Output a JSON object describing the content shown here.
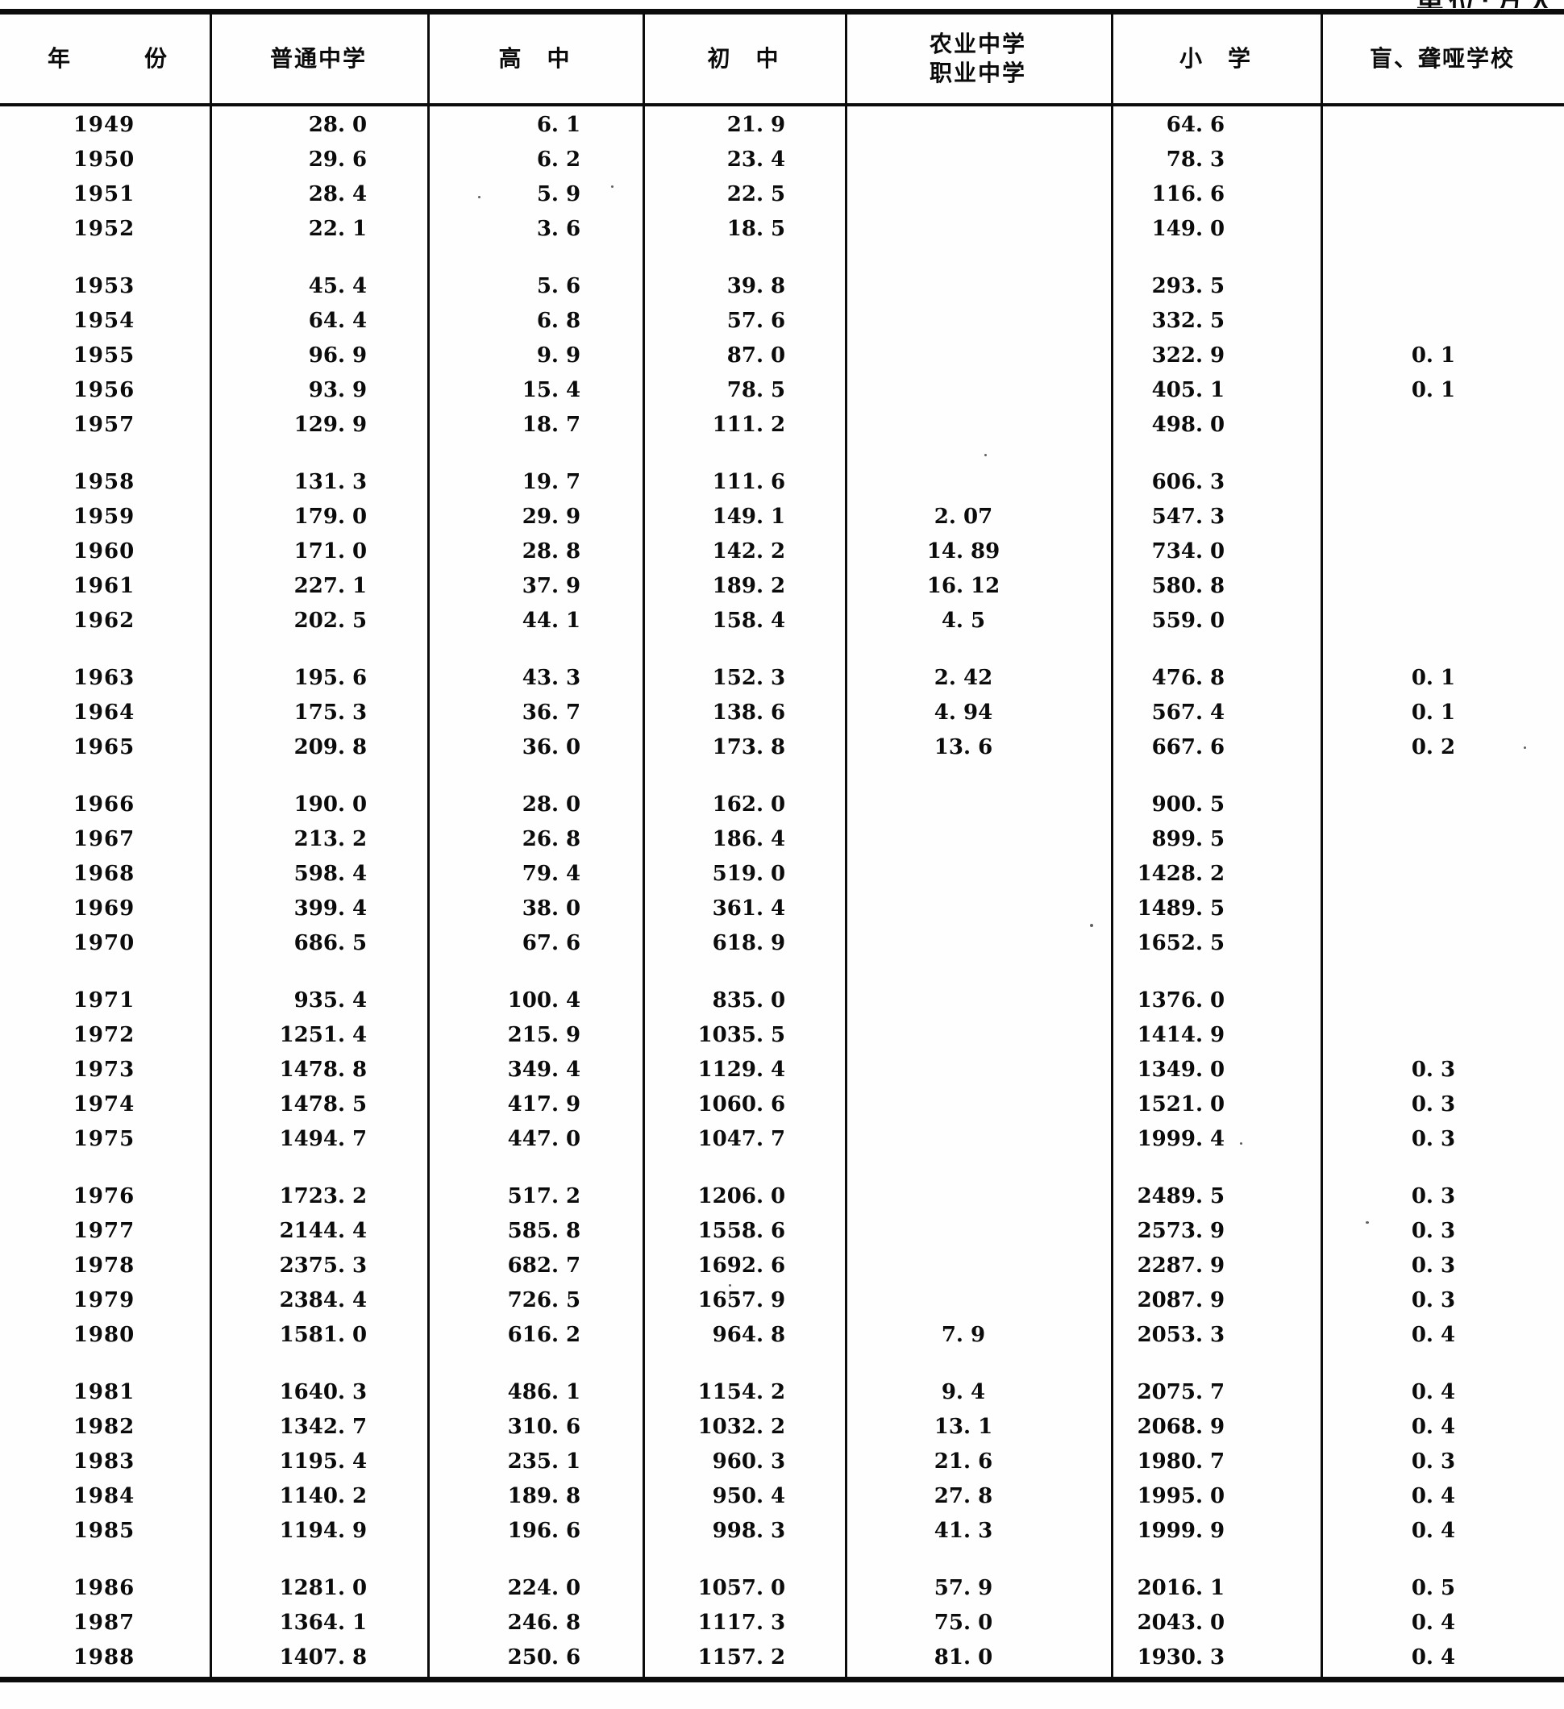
{
  "page": {
    "unit_note": "单位:万人"
  },
  "table": {
    "columns": [
      {
        "key": "year",
        "label": "年　　　份"
      },
      {
        "key": "regular_secondary",
        "label": "普通中学"
      },
      {
        "key": "senior_high",
        "label": "高　中"
      },
      {
        "key": "junior_high",
        "label": "初　中"
      },
      {
        "key": "agri_vocational",
        "label": "农业中学",
        "label2": "职业中学"
      },
      {
        "key": "primary",
        "label": "小　学"
      },
      {
        "key": "blind_deaf",
        "label": "盲、聋哑学校"
      }
    ],
    "groups": [
      {
        "rows": [
          [
            "1949",
            "28.0",
            "6.1",
            "21.9",
            "",
            "64.6",
            ""
          ],
          [
            "1950",
            "29.6",
            "6.2",
            "23.4",
            "",
            "78.3",
            ""
          ],
          [
            "1951",
            "28.4",
            "5.9",
            "22.5",
            "",
            "116.6",
            ""
          ],
          [
            "1952",
            "22.1",
            "3.6",
            "18.5",
            "",
            "149.0",
            ""
          ]
        ]
      },
      {
        "rows": [
          [
            "1953",
            "45.4",
            "5.6",
            "39.8",
            "",
            "293.5",
            ""
          ],
          [
            "1954",
            "64.4",
            "6.8",
            "57.6",
            "",
            "332.5",
            ""
          ],
          [
            "1955",
            "96.9",
            "9.9",
            "87.0",
            "",
            "322.9",
            "0.1"
          ],
          [
            "1956",
            "93.9",
            "15.4",
            "78.5",
            "",
            "405.1",
            "0.1"
          ],
          [
            "1957",
            "129.9",
            "18.7",
            "111.2",
            "",
            "498.0",
            ""
          ]
        ]
      },
      {
        "rows": [
          [
            "1958",
            "131.3",
            "19.7",
            "111.6",
            "",
            "606.3",
            ""
          ],
          [
            "1959",
            "179.0",
            "29.9",
            "149.1",
            "2.07",
            "547.3",
            ""
          ],
          [
            "1960",
            "171.0",
            "28.8",
            "142.2",
            "14.89",
            "734.0",
            ""
          ],
          [
            "1961",
            "227.1",
            "37.9",
            "189.2",
            "16.12",
            "580.8",
            ""
          ],
          [
            "1962",
            "202.5",
            "44.1",
            "158.4",
            "4.5",
            "559.0",
            ""
          ]
        ]
      },
      {
        "rows": [
          [
            "1963",
            "195.6",
            "43.3",
            "152.3",
            "2.42",
            "476.8",
            "0.1"
          ],
          [
            "1964",
            "175.3",
            "36.7",
            "138.6",
            "4.94",
            "567.4",
            "0.1"
          ],
          [
            "1965",
            "209.8",
            "36.0",
            "173.8",
            "13.6",
            "667.6",
            "0.2"
          ]
        ]
      },
      {
        "rows": [
          [
            "1966",
            "190.0",
            "28.0",
            "162.0",
            "",
            "900.5",
            ""
          ],
          [
            "1967",
            "213.2",
            "26.8",
            "186.4",
            "",
            "899.5",
            ""
          ],
          [
            "1968",
            "598.4",
            "79.4",
            "519.0",
            "",
            "1428.2",
            ""
          ],
          [
            "1969",
            "399.4",
            "38.0",
            "361.4",
            "",
            "1489.5",
            ""
          ],
          [
            "1970",
            "686.5",
            "67.6",
            "618.9",
            "",
            "1652.5",
            ""
          ]
        ]
      },
      {
        "rows": [
          [
            "1971",
            "935.4",
            "100.4",
            "835.0",
            "",
            "1376.0",
            ""
          ],
          [
            "1972",
            "1251.4",
            "215.9",
            "1035.5",
            "",
            "1414.9",
            ""
          ],
          [
            "1973",
            "1478.8",
            "349.4",
            "1129.4",
            "",
            "1349.0",
            "0.3"
          ],
          [
            "1974",
            "1478.5",
            "417.9",
            "1060.6",
            "",
            "1521.0",
            "0.3"
          ],
          [
            "1975",
            "1494.7",
            "447.0",
            "1047.7",
            "",
            "1999.4",
            "0.3"
          ]
        ]
      },
      {
        "rows": [
          [
            "1976",
            "1723.2",
            "517.2",
            "1206.0",
            "",
            "2489.5",
            "0.3"
          ],
          [
            "1977",
            "2144.4",
            "585.8",
            "1558.6",
            "",
            "2573.9",
            "0.3"
          ],
          [
            "1978",
            "2375.3",
            "682.7",
            "1692.6",
            "",
            "2287.9",
            "0.3"
          ],
          [
            "1979",
            "2384.4",
            "726.5",
            "1657.9",
            "",
            "2087.9",
            "0.3"
          ],
          [
            "1980",
            "1581.0",
            "616.2",
            "964.8",
            "7.9",
            "2053.3",
            "0.4"
          ]
        ]
      },
      {
        "rows": [
          [
            "1981",
            "1640.3",
            "486.1",
            "1154.2",
            "9.4",
            "2075.7",
            "0.4"
          ],
          [
            "1982",
            "1342.7",
            "310.6",
            "1032.2",
            "13.1",
            "2068.9",
            "0.4"
          ],
          [
            "1983",
            "1195.4",
            "235.1",
            "960.3",
            "21.6",
            "1980.7",
            "0.3"
          ],
          [
            "1984",
            "1140.2",
            "189.8",
            "950.4",
            "27.8",
            "1995.0",
            "0.4"
          ],
          [
            "1985",
            "1194.9",
            "196.6",
            "998.3",
            "41.3",
            "1999.9",
            "0.4"
          ]
        ]
      },
      {
        "rows": [
          [
            "1986",
            "1281.0",
            "224.0",
            "1057.0",
            "57.9",
            "2016.1",
            "0.5"
          ],
          [
            "1987",
            "1364.1",
            "246.8",
            "1117.3",
            "75.0",
            "2043.0",
            "0.4"
          ],
          [
            "1988",
            "1407.8",
            "250.6",
            "1157.2",
            "81.0",
            "1930.3",
            "0.4"
          ]
        ]
      }
    ]
  }
}
